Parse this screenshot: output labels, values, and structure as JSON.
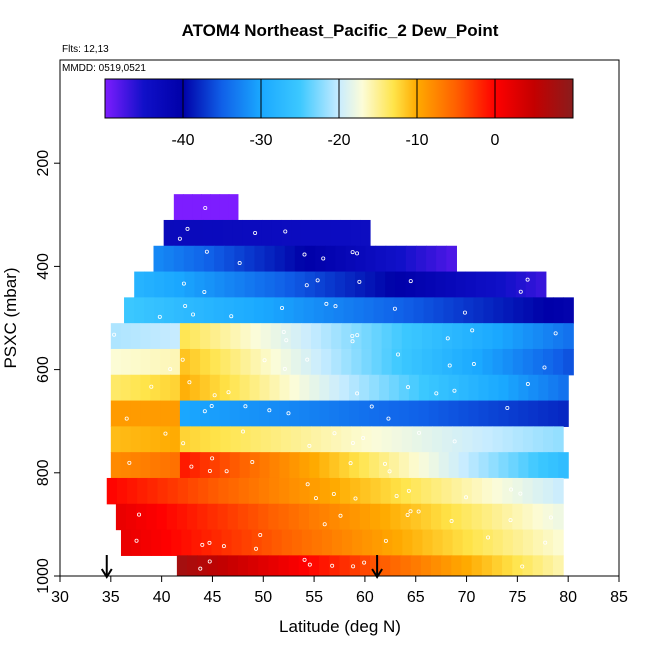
{
  "chart_data": {
    "type": "heatmap",
    "title": "ATOM4 Northeast_Pacific_2 Dew_Point",
    "flights_label": "Flts: 12,13",
    "date_label": "MMDD: 0519,0521",
    "xlabel": "Latitude (deg N)",
    "ylabel": "PSXC (mbar)",
    "xlim": [
      30,
      85
    ],
    "ylim": [
      1000,
      0
    ],
    "x_ticks": [
      "30",
      "35",
      "40",
      "45",
      "50",
      "55",
      "60",
      "65",
      "70",
      "75",
      "80",
      "85"
    ],
    "y_ticks": [
      "200",
      "400",
      "600",
      "800",
      "1000"
    ],
    "colorbar": {
      "range": [
        -50,
        10
      ],
      "ticks": [
        "-40",
        "-30",
        "-20",
        "-10",
        "0"
      ],
      "tick_values": [
        -40,
        -30,
        -20,
        -10,
        0
      ],
      "stops": [
        {
          "v": -50,
          "c": "#7d1dff"
        },
        {
          "v": -45,
          "c": "#1010c8"
        },
        {
          "v": -40,
          "c": "#0000a8"
        },
        {
          "v": -35,
          "c": "#1060e8"
        },
        {
          "v": -30,
          "c": "#1aa8ff"
        },
        {
          "v": -25,
          "c": "#3cc8ff"
        },
        {
          "v": -20,
          "c": "#c8ecff"
        },
        {
          "v": -17,
          "c": "#fcfcd8"
        },
        {
          "v": -13,
          "c": "#ffe44a"
        },
        {
          "v": -10,
          "c": "#ffaa00"
        },
        {
          "v": -5,
          "c": "#ff6000"
        },
        {
          "v": 0,
          "c": "#ff0000"
        },
        {
          "v": 5,
          "c": "#c40000"
        },
        {
          "v": 10,
          "c": "#8a1c1c"
        }
      ]
    },
    "rows": [
      {
        "p_top": 260,
        "p_bot": 310,
        "segments": [
          {
            "x0": 41.2,
            "x1": 47.5,
            "v0": -50,
            "v1": -50
          }
        ]
      },
      {
        "p_top": 310,
        "p_bot": 360,
        "segments": [
          {
            "x0": 40.2,
            "x1": 60.5,
            "v0": -43,
            "v1": -44
          }
        ]
      },
      {
        "p_top": 360,
        "p_bot": 410,
        "segments": [
          {
            "x0": 39.2,
            "x1": 69,
            "v0": -32,
            "v1": -48
          }
        ]
      },
      {
        "p_top": 410,
        "p_bot": 460,
        "segments": [
          {
            "x0": 37.3,
            "x1": 77.8,
            "v0": -28,
            "v1": -47
          }
        ]
      },
      {
        "p_top": 460,
        "p_bot": 510,
        "segments": [
          {
            "x0": 36.3,
            "x1": 80.5,
            "v0": -25,
            "v1": -41
          }
        ]
      },
      {
        "p_top": 510,
        "p_bot": 560,
        "segments": [
          {
            "x0": 35,
            "x1": 41.8,
            "v0": -21,
            "v1": -20
          },
          {
            "x0": 41.8,
            "x1": 80.5,
            "v0": -13,
            "v1": -34
          }
        ]
      },
      {
        "p_top": 560,
        "p_bot": 610,
        "segments": [
          {
            "x0": 35,
            "x1": 41.8,
            "v0": -17,
            "v1": -16
          },
          {
            "x0": 41.8,
            "x1": 80.5,
            "v0": -11,
            "v1": -36
          }
        ]
      },
      {
        "p_top": 610,
        "p_bot": 660,
        "segments": [
          {
            "x0": 35,
            "x1": 41.8,
            "v0": -14,
            "v1": -12
          },
          {
            "x0": 41.8,
            "x1": 80,
            "v0": -10,
            "v1": -34
          }
        ]
      },
      {
        "p_top": 660,
        "p_bot": 710,
        "segments": [
          {
            "x0": 35,
            "x1": 41.8,
            "v0": -9,
            "v1": -9
          },
          {
            "x0": 41.8,
            "x1": 80,
            "v0": -30,
            "v1": -38
          }
        ]
      },
      {
        "p_top": 710,
        "p_bot": 760,
        "segments": [
          {
            "x0": 35,
            "x1": 41.8,
            "v0": -11,
            "v1": -10
          },
          {
            "x0": 41.8,
            "x1": 79.5,
            "v0": -12,
            "v1": -22
          }
        ]
      },
      {
        "p_top": 760,
        "p_bot": 810,
        "segments": [
          {
            "x0": 35,
            "x1": 41.8,
            "v0": -8,
            "v1": -6
          },
          {
            "x0": 41.8,
            "x1": 80,
            "v0": -1,
            "v1": -27
          }
        ]
      },
      {
        "p_top": 810,
        "p_bot": 860,
        "segments": [
          {
            "x0": 34.6,
            "x1": 79.5,
            "v0": 0,
            "v1": -20
          }
        ]
      },
      {
        "p_top": 860,
        "p_bot": 910,
        "segments": [
          {
            "x0": 35.5,
            "x1": 79.5,
            "v0": 2,
            "v1": -18
          }
        ]
      },
      {
        "p_top": 910,
        "p_bot": 960,
        "segments": [
          {
            "x0": 36,
            "x1": 79.5,
            "v0": 2,
            "v1": -17
          }
        ]
      },
      {
        "p_top": 960,
        "p_bot": 1000,
        "segments": [
          {
            "x0": 41.5,
            "x1": 79.5,
            "v0": 8,
            "v1": -16
          }
        ]
      }
    ],
    "arrows": [
      {
        "x": 34.6,
        "p": 1000
      },
      {
        "x": 61.2,
        "p": 1000
      }
    ]
  }
}
